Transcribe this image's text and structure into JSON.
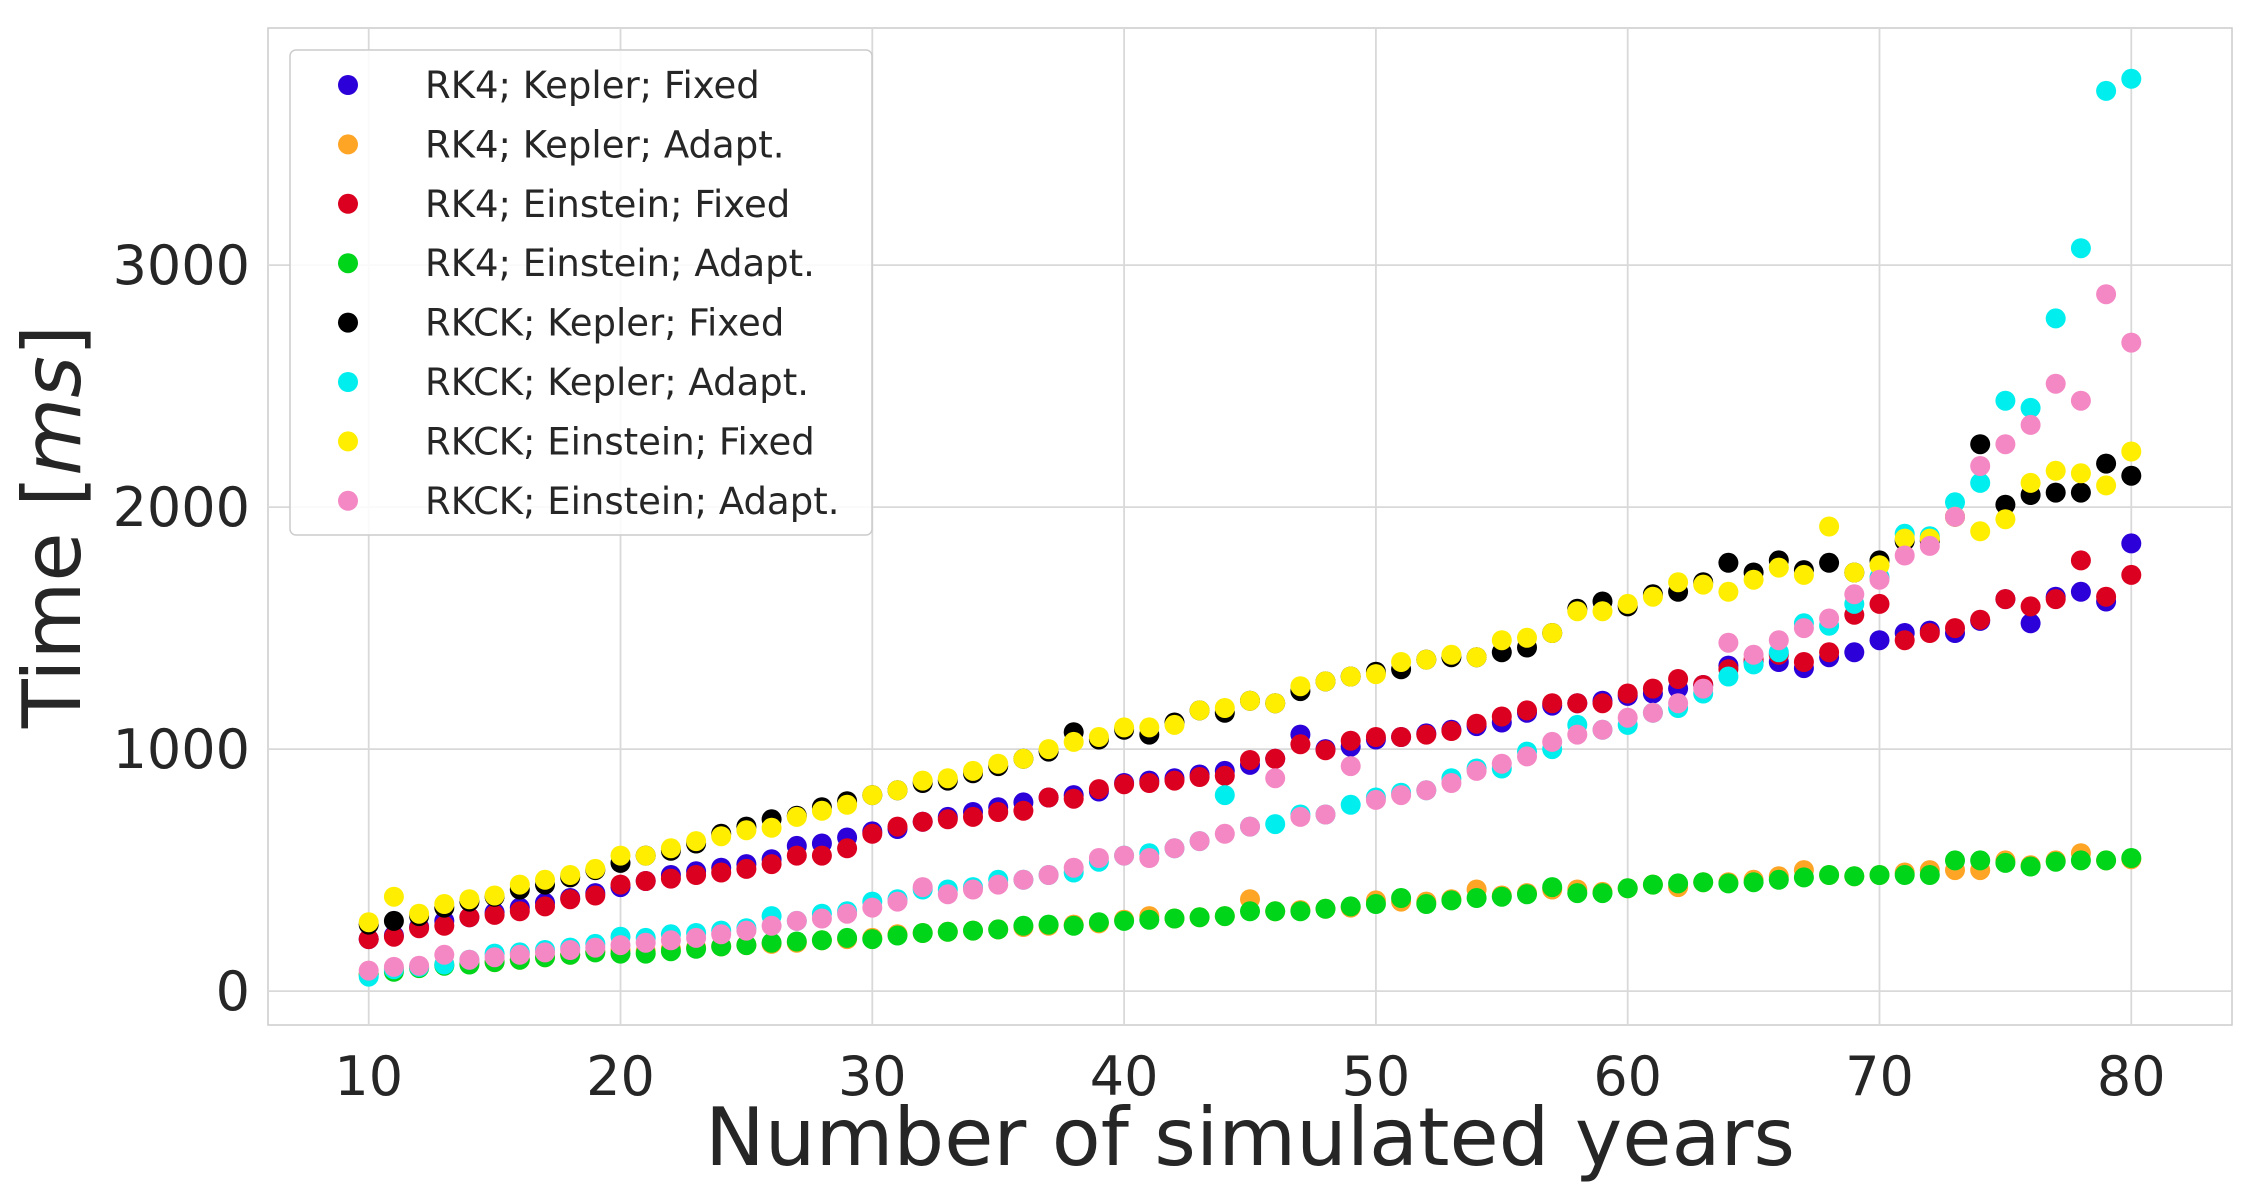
{
  "chart_data": {
    "type": "scatter",
    "title": "",
    "xlabel": "Number of simulated years",
    "ylabel": "Time [ms]",
    "ylabel_parts": {
      "prefix": "Time [",
      "unit": "ms",
      "suffix": "]"
    },
    "xlim": [
      6,
      84
    ],
    "ylim": [
      -140,
      3980
    ],
    "xticks": [
      10,
      20,
      30,
      40,
      50,
      60,
      70,
      80
    ],
    "yticks": [
      0,
      1000,
      2000,
      3000
    ],
    "grid": true,
    "legend_position": "top-left",
    "x": [
      10,
      11,
      12,
      13,
      14,
      15,
      16,
      17,
      18,
      19,
      20,
      21,
      22,
      23,
      24,
      25,
      26,
      27,
      28,
      29,
      30,
      31,
      32,
      33,
      34,
      35,
      36,
      37,
      38,
      39,
      40,
      41,
      42,
      43,
      44,
      45,
      46,
      47,
      48,
      49,
      50,
      51,
      52,
      53,
      54,
      55,
      56,
      57,
      58,
      59,
      60,
      61,
      62,
      63,
      64,
      65,
      66,
      67,
      68,
      69,
      70,
      71,
      72,
      73,
      74,
      75,
      76,
      77,
      78,
      79,
      80
    ],
    "series": [
      {
        "name": "RK4; Kepler; Fixed",
        "color": "#2b00d9",
        "values": [
          215,
          230,
          265,
          290,
          305,
          325,
          345,
          365,
          385,
          405,
          430,
          455,
          480,
          495,
          510,
          525,
          545,
          600,
          610,
          635,
          660,
          670,
          700,
          720,
          740,
          760,
          780,
          800,
          810,
          825,
          860,
          870,
          880,
          895,
          910,
          935,
          960,
          1060,
          1000,
          1010,
          1040,
          1050,
          1065,
          1080,
          1095,
          1110,
          1150,
          1180,
          1190,
          1200,
          1220,
          1230,
          1250,
          1265,
          1345,
          1360,
          1360,
          1335,
          1380,
          1400,
          1450,
          1480,
          1490,
          1480,
          1530,
          1620,
          1520,
          1630,
          1650,
          1610,
          1850
        ]
      },
      {
        "name": "RK4; Kepler; Adapt.",
        "color": "#ffa526",
        "values": [
          70,
          90,
          100,
          110,
          115,
          120,
          130,
          140,
          150,
          165,
          170,
          165,
          175,
          180,
          185,
          190,
          195,
          200,
          210,
          215,
          220,
          235,
          240,
          245,
          250,
          255,
          265,
          270,
          275,
          280,
          295,
          310,
          300,
          305,
          310,
          380,
          330,
          335,
          340,
          345,
          375,
          370,
          370,
          380,
          420,
          395,
          405,
          420,
          420,
          410,
          425,
          440,
          430,
          450,
          450,
          460,
          475,
          500,
          480,
          475,
          480,
          490,
          500,
          500,
          500,
          540,
          520,
          540,
          570,
          540,
          545
        ]
      },
      {
        "name": "RK4; Einstein; Fixed",
        "color": "#dc0020",
        "values": [
          215,
          225,
          260,
          270,
          305,
          315,
          330,
          350,
          380,
          395,
          440,
          455,
          465,
          480,
          490,
          505,
          525,
          560,
          560,
          590,
          650,
          680,
          700,
          710,
          720,
          740,
          745,
          800,
          795,
          835,
          855,
          860,
          870,
          885,
          890,
          955,
          960,
          1020,
          995,
          1035,
          1050,
          1050,
          1060,
          1075,
          1105,
          1135,
          1160,
          1190,
          1190,
          1190,
          1230,
          1250,
          1290,
          1265,
          1330,
          1370,
          1390,
          1360,
          1400,
          1555,
          1600,
          1450,
          1480,
          1500,
          1535,
          1620,
          1590,
          1620,
          1780,
          1630,
          1720
        ]
      },
      {
        "name": "RK4; Einstein; Adapt.",
        "color": "#00d51a",
        "values": [
          70,
          80,
          95,
          105,
          110,
          120,
          130,
          140,
          150,
          160,
          155,
          155,
          165,
          175,
          185,
          190,
          200,
          205,
          210,
          220,
          215,
          230,
          240,
          245,
          250,
          255,
          270,
          275,
          270,
          285,
          290,
          295,
          300,
          305,
          310,
          330,
          330,
          330,
          340,
          350,
          360,
          385,
          360,
          375,
          385,
          390,
          400,
          430,
          405,
          405,
          425,
          440,
          445,
          450,
          445,
          450,
          460,
          470,
          480,
          475,
          480,
          480,
          480,
          540,
          540,
          530,
          515,
          535,
          540,
          540,
          550
        ]
      },
      {
        "name": "RKCK; Kepler; Fixed",
        "color": "#000000",
        "values": [
          275,
          290,
          310,
          345,
          370,
          390,
          420,
          440,
          470,
          500,
          530,
          560,
          580,
          610,
          650,
          680,
          710,
          725,
          760,
          785,
          810,
          830,
          860,
          870,
          900,
          930,
          960,
          990,
          1070,
          1040,
          1080,
          1060,
          1110,
          1160,
          1150,
          1200,
          1190,
          1240,
          1280,
          1300,
          1320,
          1330,
          1370,
          1380,
          1380,
          1400,
          1420,
          1480,
          1580,
          1610,
          1590,
          1640,
          1650,
          1690,
          1770,
          1730,
          1780,
          1740,
          1770,
          1730,
          1780,
          1860,
          1860,
          1960,
          2260,
          2010,
          2050,
          2060,
          2060,
          2180,
          2130
        ]
      },
      {
        "name": "RKCK; Kepler; Adapt.",
        "color": "#00eeee",
        "values": [
          60,
          90,
          100,
          110,
          130,
          155,
          160,
          170,
          180,
          195,
          225,
          220,
          235,
          240,
          250,
          260,
          310,
          290,
          320,
          330,
          370,
          380,
          420,
          420,
          430,
          460,
          460,
          480,
          490,
          535,
          560,
          570,
          590,
          620,
          810,
          680,
          690,
          730,
          730,
          770,
          800,
          820,
          830,
          880,
          920,
          920,
          990,
          1000,
          1100,
          1080,
          1100,
          1150,
          1170,
          1230,
          1300,
          1350,
          1400,
          1520,
          1510,
          1600,
          1710,
          1890,
          1880,
          2020,
          2100,
          2440,
          2410,
          2780,
          3070,
          3720,
          3770
        ]
      },
      {
        "name": "RKCK; Einstein; Fixed",
        "color": "#ffee00",
        "values": [
          285,
          390,
          320,
          360,
          380,
          395,
          440,
          460,
          480,
          505,
          560,
          560,
          590,
          620,
          640,
          665,
          675,
          720,
          745,
          770,
          810,
          830,
          870,
          880,
          910,
          940,
          960,
          1000,
          1030,
          1050,
          1090,
          1090,
          1100,
          1160,
          1170,
          1200,
          1190,
          1260,
          1280,
          1300,
          1310,
          1360,
          1370,
          1390,
          1380,
          1450,
          1460,
          1480,
          1570,
          1570,
          1600,
          1630,
          1690,
          1680,
          1650,
          1700,
          1750,
          1720,
          1920,
          1730,
          1760,
          1870,
          1870,
          1960,
          1900,
          1950,
          2100,
          2150,
          2140,
          2090,
          2230
        ]
      },
      {
        "name": "RKCK; Einstein; Adapt.",
        "color": "#f488c4",
        "values": [
          85,
          100,
          105,
          150,
          130,
          140,
          150,
          160,
          170,
          180,
          190,
          200,
          210,
          220,
          235,
          250,
          270,
          290,
          300,
          320,
          345,
          370,
          430,
          400,
          420,
          440,
          460,
          480,
          510,
          550,
          560,
          550,
          590,
          620,
          650,
          680,
          880,
          720,
          730,
          930,
          790,
          810,
          830,
          860,
          910,
          940,
          970,
          1030,
          1060,
          1080,
          1130,
          1150,
          1190,
          1250,
          1440,
          1390,
          1450,
          1500,
          1540,
          1640,
          1700,
          1800,
          1840,
          1960,
          2170,
          2260,
          2340,
          2510,
          2440,
          2880,
          2680
        ]
      }
    ]
  }
}
